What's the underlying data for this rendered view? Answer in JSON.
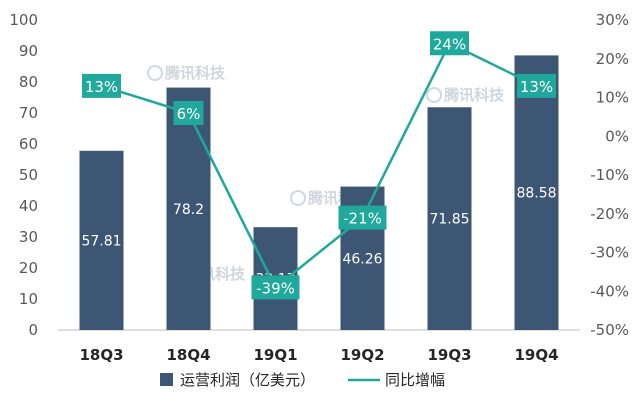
{
  "chart_data": {
    "type": "bar",
    "categories": [
      "18Q3",
      "18Q4",
      "19Q1",
      "19Q2",
      "19Q3",
      "19Q4"
    ],
    "series": [
      {
        "name": "运营利润（亿美元）",
        "type": "bar",
        "axis": "left",
        "values": [
          57.81,
          78.2,
          33.17,
          46.26,
          71.85,
          88.58
        ],
        "labels": [
          "57.81",
          "78.2",
          "33.17",
          "46.26",
          "71.85",
          "88.58"
        ],
        "color": "#3d5673"
      },
      {
        "name": "同比增幅",
        "type": "line",
        "axis": "right",
        "values": [
          13,
          6,
          -39,
          -21,
          24,
          13
        ],
        "labels": [
          "13%",
          "6%",
          "-39%",
          "-21%",
          "24%",
          "13%"
        ],
        "color": "#1fa89b"
      }
    ],
    "y_left": {
      "min": 0,
      "max": 100,
      "step": 10,
      "ticks": [
        "0",
        "10",
        "20",
        "30",
        "40",
        "50",
        "60",
        "70",
        "80",
        "90",
        "100"
      ]
    },
    "y_right": {
      "min": -50,
      "max": 30,
      "step": 10,
      "ticks": [
        "-50%",
        "-40%",
        "-30%",
        "-20%",
        "-10%",
        "0%",
        "10%",
        "20%",
        "30%"
      ]
    },
    "grid": false,
    "legend_position": "bottom"
  },
  "watermark": "腾讯科技"
}
